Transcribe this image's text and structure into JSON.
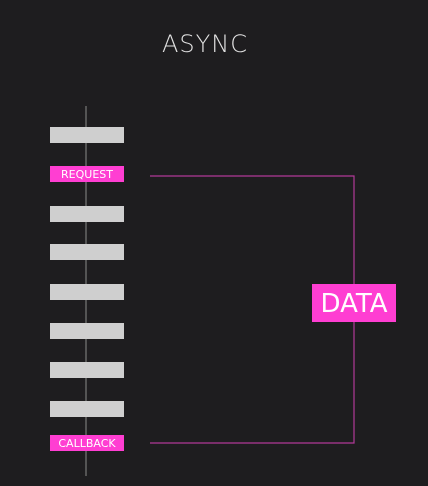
{
  "title": "ASYNC",
  "timeline": {
    "blocks_before_request": 1,
    "blocks_between": 6
  },
  "request_label": "REQUEST",
  "callback_label": "CALLBACK",
  "data_label": "DATA",
  "colors": {
    "background": "#1e1d1f",
    "block": "#cfcfcf",
    "accent": "#ff3ed2",
    "line": "#b13a98",
    "timeline": "#8a8a8a"
  }
}
